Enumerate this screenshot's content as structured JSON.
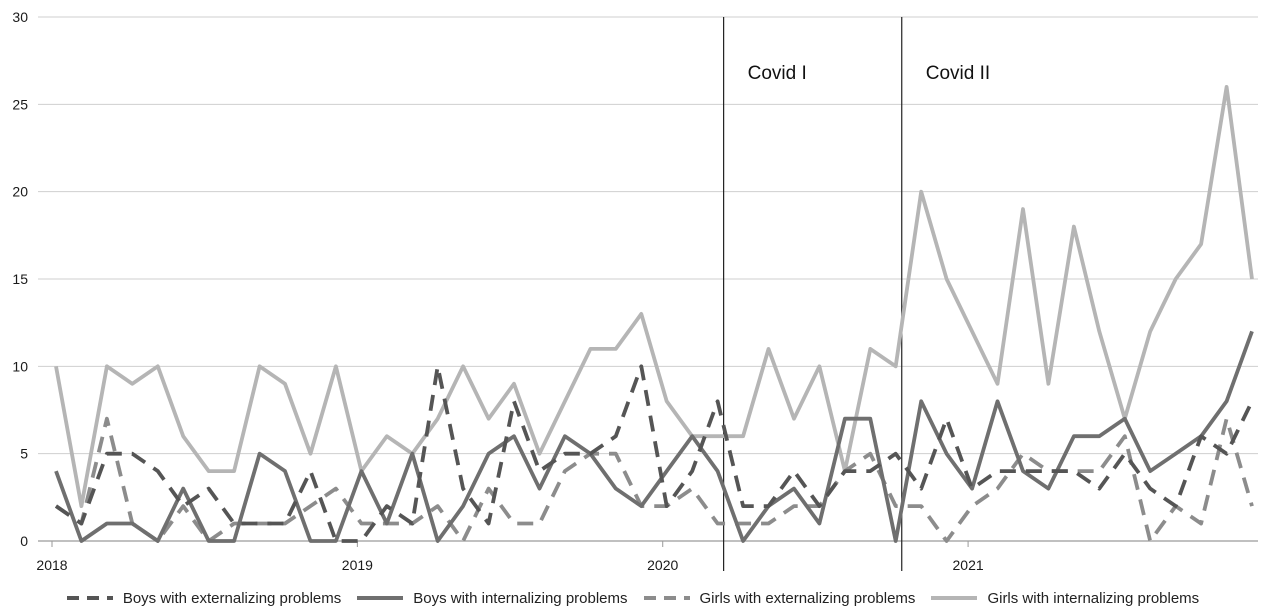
{
  "chart_data": {
    "type": "line",
    "x_tick_labels": [
      "2018",
      "2019",
      "2020",
      "2021"
    ],
    "ylim": [
      0,
      30
    ],
    "yticks": [
      0,
      5,
      10,
      15,
      20,
      25,
      30
    ],
    "grid": "horizontal",
    "legend_position": "bottom",
    "annotations": [
      {
        "label": "Covid I",
        "month_index": 26
      },
      {
        "label": "Covid II",
        "month_index": 33
      }
    ],
    "series": [
      {
        "name": "Boys with externalizing problems",
        "style": "dashed",
        "color": "#555555",
        "values": [
          2,
          1,
          5,
          5,
          4,
          2,
          3,
          1,
          1,
          1,
          4,
          0,
          0,
          2,
          1,
          10,
          3,
          1,
          8,
          4,
          5,
          5,
          6,
          10,
          2,
          4,
          8,
          2,
          2,
          4,
          2,
          4,
          4,
          5,
          3,
          7,
          3,
          4,
          4,
          4,
          4,
          3,
          5,
          3,
          2,
          6,
          5,
          8
        ]
      },
      {
        "name": "Boys with internalizing problems",
        "style": "solid",
        "color": "#6f6f6f",
        "values": [
          4,
          0,
          1,
          1,
          0,
          3,
          0,
          0,
          5,
          4,
          0,
          0,
          4,
          1,
          5,
          0,
          2,
          5,
          6,
          3,
          6,
          5,
          3,
          2,
          4,
          6,
          4,
          0,
          2,
          3,
          1,
          7,
          7,
          0,
          8,
          5,
          3,
          8,
          4,
          3,
          6,
          6,
          7,
          4,
          5,
          6,
          8,
          12
        ]
      },
      {
        "name": "Girls with externalizing problems",
        "style": "dashed",
        "color": "#8c8c8c",
        "values": [
          2,
          1,
          7,
          1,
          0,
          2,
          0,
          1,
          1,
          1,
          2,
          3,
          1,
          1,
          1,
          2,
          0,
          3,
          1,
          1,
          4,
          5,
          5,
          2,
          2,
          3,
          1,
          1,
          1,
          2,
          2,
          4,
          5,
          2,
          2,
          0,
          2,
          3,
          5,
          4,
          4,
          4,
          6,
          0,
          2,
          1,
          7,
          2
        ]
      },
      {
        "name": "Girls with internalizing problems",
        "style": "solid",
        "color": "#b5b5b5",
        "values": [
          10,
          2,
          10,
          9,
          10,
          6,
          4,
          4,
          10,
          9,
          5,
          10,
          4,
          6,
          5,
          7,
          10,
          7,
          9,
          5,
          8,
          11,
          11,
          13,
          8,
          6,
          6,
          6,
          11,
          7,
          10,
          4,
          11,
          10,
          20,
          15,
          12,
          9,
          19,
          9,
          18,
          12,
          7,
          12,
          15,
          17,
          26,
          15
        ]
      }
    ]
  }
}
